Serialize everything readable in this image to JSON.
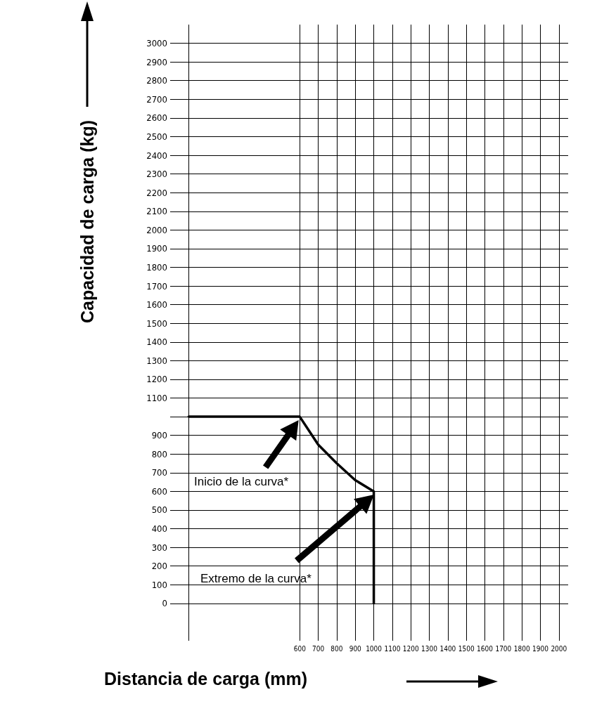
{
  "chart_data": {
    "type": "line",
    "xlabel": "Distancia de carga (mm)",
    "ylabel": "Capacidad de carga (kg)",
    "x": [
      0,
      600,
      700,
      800,
      900,
      1000,
      1000
    ],
    "series": [
      {
        "color": "#000000",
        "values": [
          1000,
          1000,
          850,
          750,
          660,
          600,
          0
        ]
      }
    ],
    "xlim": [
      -100,
      2050
    ],
    "ylim": [
      -200,
      3100
    ],
    "xticks": [
      {
        "value": 0,
        "label": null
      },
      600,
      700,
      800,
      900,
      1000,
      1100,
      1200,
      1300,
      1400,
      1500,
      1600,
      1700,
      1800,
      1900,
      2000
    ],
    "yticks": [
      0,
      100,
      200,
      300,
      400,
      500,
      600,
      700,
      800,
      900,
      {
        "value": 1000,
        "label": null
      },
      1100,
      1200,
      1300,
      1400,
      1500,
      1600,
      1700,
      1800,
      1900,
      2000,
      2100,
      2200,
      2300,
      2400,
      2500,
      2600,
      2700,
      2800,
      2900,
      3000
    ],
    "annotations": [
      "Inicio de la curva*",
      "Extremo de la curva*"
    ],
    "grid": true,
    "marker": "none",
    "line_style": "solid"
  }
}
